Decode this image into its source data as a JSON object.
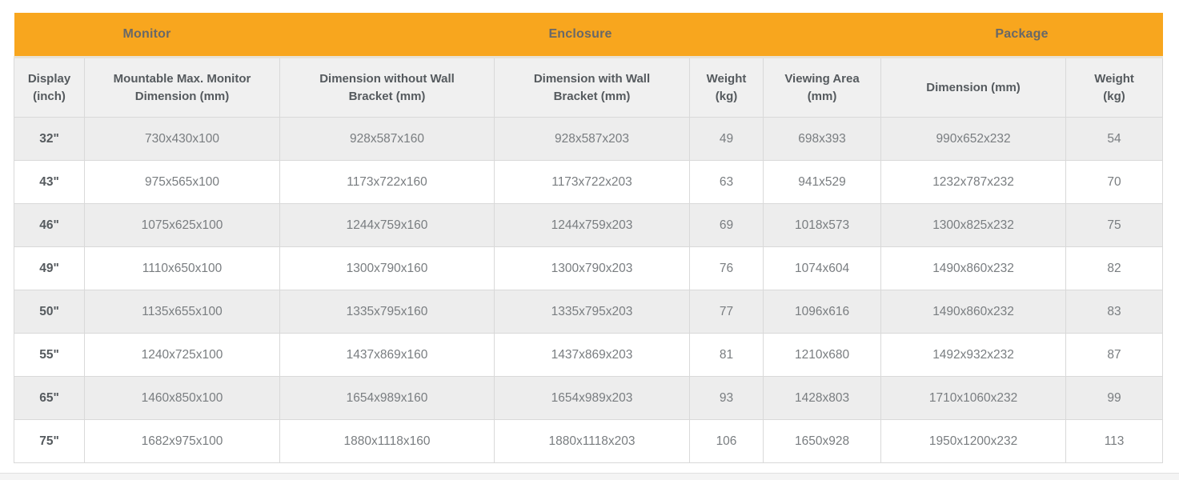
{
  "ui": {
    "colors": {
      "page_bg": "#FFFFFF",
      "group_header_bg": "#F8A61E",
      "group_header_text": "#686868",
      "column_header_bg": "#F0F0F0",
      "column_header_text": "#555A5E",
      "stripe_bg": "#EDEDED",
      "white_bg": "#FFFFFF",
      "data_text": "#797D80",
      "row_label_text": "#555A5E",
      "border": "#D9D9D9",
      "under_header_border": "#E8E3D6",
      "footer_bg": "#F4F4F4",
      "footer_border": "#E0E0E0"
    }
  },
  "chart_data": {
    "type": "table",
    "column_groups": [
      {
        "label": "Monitor",
        "colspan": 2
      },
      {
        "label": "Enclosure",
        "colspan": 4
      },
      {
        "label": "Package",
        "colspan": 2
      }
    ],
    "columns": [
      "Display\n(inch)",
      "Mountable Max. Monitor\nDimension (mm)",
      "Dimension without Wall\nBracket (mm)",
      "Dimension with Wall\nBracket (mm)",
      "Weight\n(kg)",
      "Viewing Area\n(mm)",
      "Dimension (mm)",
      "Weight\n(kg)"
    ],
    "rows": [
      [
        "32\"",
        "730x430x100",
        "928x587x160",
        "928x587x203",
        "49",
        "698x393",
        "990x652x232",
        "54"
      ],
      [
        "43\"",
        "975x565x100",
        "1173x722x160",
        "1173x722x203",
        "63",
        "941x529",
        "1232x787x232",
        "70"
      ],
      [
        "46\"",
        "1075x625x100",
        "1244x759x160",
        "1244x759x203",
        "69",
        "1018x573",
        "1300x825x232",
        "75"
      ],
      [
        "49\"",
        "1110x650x100",
        "1300x790x160",
        "1300x790x203",
        "76",
        "1074x604",
        "1490x860x232",
        "82"
      ],
      [
        "50\"",
        "1135x655x100",
        "1335x795x160",
        "1335x795x203",
        "77",
        "1096x616",
        "1490x860x232",
        "83"
      ],
      [
        "55\"",
        "1240x725x100",
        "1437x869x160",
        "1437x869x203",
        "81",
        "1210x680",
        "1492x932x232",
        "87"
      ],
      [
        "65\"",
        "1460x850x100",
        "1654x989x160",
        "1654x989x203",
        "93",
        "1428x803",
        "1710x1060x232",
        "99"
      ],
      [
        "75\"",
        "1682x975x100",
        "1880x1118x160",
        "1880x1118x203",
        "106",
        "1650x928",
        "1950x1200x232",
        "113"
      ]
    ]
  }
}
